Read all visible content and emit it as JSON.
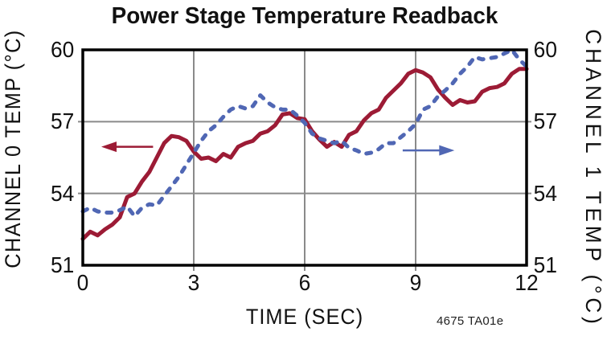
{
  "chart": {
    "title": "Power Stage Temperature Readback",
    "x_axis": {
      "label": "TIME (SEC)",
      "ticks": [
        "0",
        "3",
        "6",
        "9",
        "12"
      ]
    },
    "y_axis_left": {
      "label": "CHANNEL 0 TEMP (°C)",
      "ticks": [
        "60",
        "57",
        "54",
        "51"
      ]
    },
    "y_axis_right": {
      "label": "CHANNEL 1 TEMP (°C)",
      "ticks": [
        "60",
        "57",
        "54",
        "51"
      ]
    },
    "footnote": "4675 TA01e"
  },
  "chart_data": {
    "type": "line",
    "title": "Power Stage Temperature Readback",
    "xlabel": "TIME (SEC)",
    "ylabel_left": "CHANNEL 0 TEMP (°C)",
    "ylabel_right": "CHANNEL 1 TEMP (°C)",
    "xlim": [
      0,
      12
    ],
    "ylim_left": [
      51,
      60
    ],
    "ylim_right": [
      51,
      60
    ],
    "xticks": [
      0,
      3,
      6,
      9,
      12
    ],
    "yticks": [
      51,
      54,
      57,
      60
    ],
    "grid": true,
    "legend_position": "none",
    "x_unit": "seconds",
    "y_unit": "degrees Celsius",
    "x_start": 0,
    "x_step": 0.2,
    "series": [
      {
        "name": "Channel 0 temperature",
        "axis": "left",
        "color": "#9C1B35",
        "line_style": "solid",
        "values": [
          52.1,
          52.4,
          52.25,
          52.5,
          52.7,
          53.0,
          53.85,
          54.0,
          54.5,
          54.9,
          55.5,
          56.1,
          56.4,
          56.35,
          56.2,
          55.75,
          55.45,
          55.5,
          55.35,
          55.65,
          55.5,
          55.95,
          56.1,
          56.2,
          56.5,
          56.6,
          56.85,
          57.3,
          57.35,
          57.15,
          57.1,
          56.6,
          56.25,
          55.95,
          56.15,
          55.95,
          56.45,
          56.6,
          57.05,
          57.35,
          57.5,
          58.0,
          58.3,
          58.6,
          59.0,
          59.15,
          59.05,
          58.85,
          58.35,
          58.0,
          57.7,
          57.9,
          57.8,
          57.85,
          58.25,
          58.4,
          58.45,
          58.6,
          59.0,
          59.2,
          59.2
        ]
      },
      {
        "name": "Channel 1 temperature",
        "axis": "right",
        "color": "#5067B4",
        "line_style": "dashed",
        "values": [
          53.25,
          53.4,
          53.25,
          53.2,
          53.2,
          53.3,
          53.45,
          53.05,
          53.4,
          53.55,
          53.5,
          53.9,
          54.3,
          54.7,
          55.2,
          55.7,
          56.2,
          56.6,
          56.85,
          57.2,
          57.5,
          57.65,
          57.55,
          57.65,
          58.1,
          57.8,
          57.6,
          57.5,
          57.5,
          57.25,
          56.95,
          56.5,
          56.3,
          56.2,
          56.1,
          56.2,
          55.9,
          55.8,
          55.65,
          55.7,
          55.85,
          56.1,
          56.1,
          56.35,
          56.6,
          56.9,
          57.5,
          57.65,
          58.05,
          58.3,
          58.6,
          59.0,
          59.3,
          59.7,
          59.6,
          59.65,
          59.7,
          59.85,
          60.0,
          59.6,
          59.3
        ]
      }
    ],
    "annotations": [
      {
        "type": "arrow",
        "refers_to": "Channel 0 temperature",
        "direction": "left",
        "x_tail": 1.9,
        "x_tip": 0.5,
        "y": 55.95,
        "color": "#9C1B35"
      },
      {
        "type": "arrow",
        "refers_to": "Channel 1 temperature",
        "direction": "right",
        "x_tail": 8.65,
        "x_tip": 10.05,
        "y": 55.8,
        "color": "#5067B4"
      }
    ],
    "footnote": "4675 TA01e",
    "colors": {
      "grid": "#8A8A8A",
      "frame": "#000000",
      "background": "#FFFFFF"
    }
  }
}
